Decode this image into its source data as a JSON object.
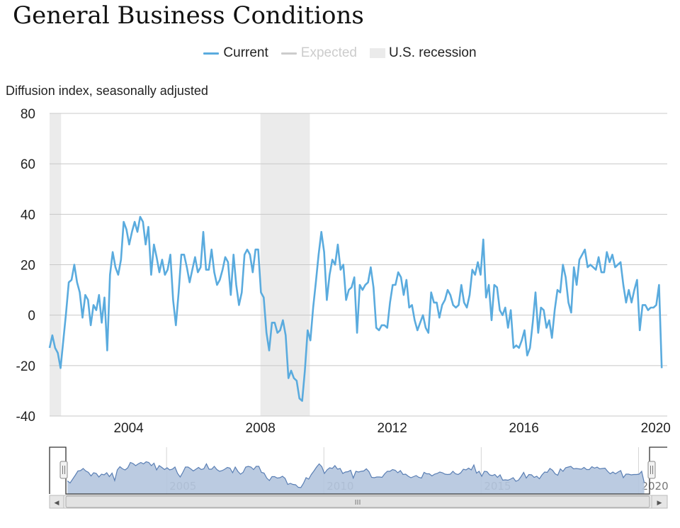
{
  "title": "General Business Conditions",
  "legend": {
    "current": "Current",
    "expected": "Expected",
    "recession": "U.S. recession"
  },
  "colors": {
    "current": "#5aabde",
    "expected_disabled": "#cccccc",
    "recession_band": "#ebebeb",
    "gridline": "#c8c8c8",
    "navigator_fill": "#b4c5de",
    "navigator_line": "#5a7fb4"
  },
  "chart_data": {
    "type": "line",
    "title": "General Business Conditions",
    "ylabel": "Diffusion index, seasonally adjusted",
    "xlabel": "",
    "ylim": [
      -40,
      80
    ],
    "xlim": [
      2001.6,
      2020.35
    ],
    "y_ticks": [
      "80",
      "60",
      "40",
      "20",
      "0",
      "-20",
      "-40"
    ],
    "x_ticks": [
      {
        "label": "2004",
        "value": 2004
      },
      {
        "label": "2008",
        "value": 2008
      },
      {
        "label": "2012",
        "value": 2012
      },
      {
        "label": "2016",
        "value": 2016
      },
      {
        "label": "2020",
        "value": 2020
      }
    ],
    "recessions": [
      [
        2001.6,
        2001.95
      ],
      [
        2008.0,
        2009.5
      ]
    ],
    "series": [
      {
        "name": "Current",
        "x_start": 2001.6,
        "step_months": 1,
        "values": [
          -13,
          -8,
          -13,
          -15,
          -21,
          -10,
          1,
          13,
          14,
          20,
          13,
          9,
          -1,
          8,
          6,
          -4,
          4,
          2,
          8,
          -3,
          7,
          -14,
          16,
          25,
          19,
          16,
          22,
          37,
          34,
          28,
          33,
          37,
          33,
          39,
          37,
          28,
          35,
          16,
          28,
          23,
          17,
          22,
          16,
          18,
          24,
          6,
          -4,
          9,
          24,
          24,
          19,
          13,
          18,
          23,
          17,
          19,
          33,
          18,
          18,
          26,
          17,
          12,
          14,
          18,
          23,
          21,
          8,
          24,
          12,
          4,
          9,
          24,
          26,
          24,
          17,
          26,
          26,
          9,
          7,
          -7,
          -14,
          -3,
          -3,
          -7,
          -6,
          -2,
          -8,
          -25,
          -22,
          -25,
          -26,
          -33,
          -34,
          -22,
          -6,
          -10,
          3,
          13,
          24,
          33,
          25,
          6,
          16,
          22,
          20,
          28,
          18,
          20,
          6,
          10,
          11,
          15,
          -7,
          12,
          10,
          12,
          13,
          19,
          11,
          -5,
          -6,
          -4,
          -4,
          -5,
          5,
          12,
          12,
          17,
          15,
          8,
          14,
          3,
          4,
          -2,
          -6,
          -3,
          0,
          -5,
          -7,
          9,
          5,
          5,
          -1,
          4,
          6,
          10,
          8,
          4,
          3,
          4,
          12,
          5,
          3,
          8,
          18,
          16,
          21,
          16,
          30,
          7,
          12,
          -2,
          12,
          11,
          2,
          0,
          3,
          -5,
          2,
          -13,
          -12,
          -13,
          -10,
          -6,
          -16,
          -13,
          -3,
          9,
          -7,
          3,
          2,
          -5,
          -2,
          -9,
          2,
          10,
          9,
          20,
          15,
          5,
          1,
          19,
          12,
          22,
          24,
          26,
          19,
          20,
          19,
          18,
          23,
          17,
          17,
          25,
          21,
          24,
          19,
          20,
          21,
          12,
          5,
          10,
          5,
          10,
          14,
          -6,
          4,
          4,
          2,
          3,
          3,
          4,
          12,
          -21
        ]
      }
    ]
  },
  "navigator": {
    "x_ticks": [
      {
        "label": "2005",
        "value": 2005
      },
      {
        "label": "2010",
        "value": 2010
      },
      {
        "label": "2015",
        "value": 2015
      },
      {
        "label": "2020",
        "value": 2020
      }
    ],
    "scroll_left_arrow": "◀",
    "scroll_right_arrow": "▶",
    "scroll_grip": "III"
  }
}
